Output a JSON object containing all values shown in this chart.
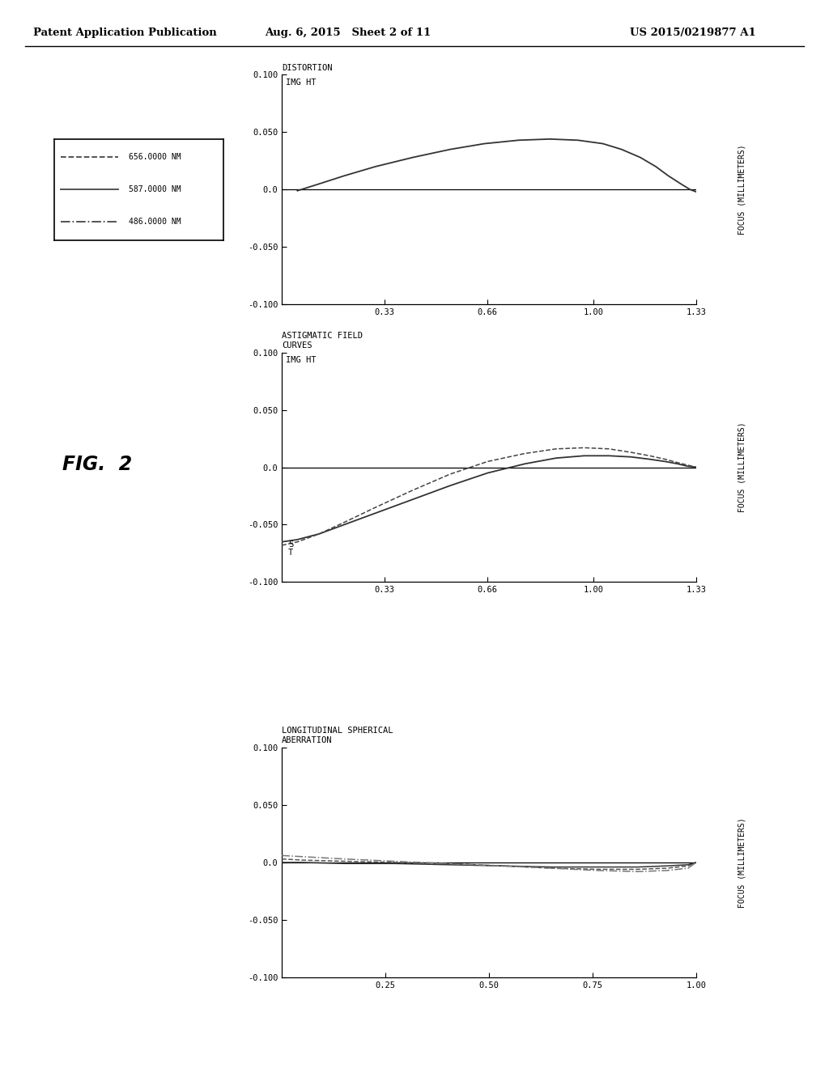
{
  "header_left": "Patent Application Publication",
  "header_mid": "Aug. 6, 2015   Sheet 2 of 11",
  "header_right": "US 2015/0219877 A1",
  "fig_label": "FIG.  2",
  "legend_entries": [
    {
      "label": "656.0000 NM",
      "style": "--",
      "color": "#444444"
    },
    {
      "label": "587.0000 NM",
      "style": "-",
      "color": "#444444"
    },
    {
      "label": "486.0000 NM",
      "style": "-.",
      "color": "#444444"
    }
  ],
  "plot1": {
    "title": "DISTORTION",
    "ylabel": "FOCUS (MILLIMETERS)",
    "xlabel": "IMG HT",
    "ylim": [
      -0.1,
      0.1
    ],
    "xlim": [
      0.0,
      1.33
    ],
    "yticks": [
      -0.1,
      -0.05,
      0.0,
      0.05,
      0.1
    ],
    "xticks": [
      0.33,
      0.66,
      1.0,
      1.33
    ],
    "ytick_labels": [
      "-0.100",
      "-0.050",
      "0.0",
      "0.050",
      "0.100"
    ],
    "xtick_labels": [
      "0.33",
      "0.66",
      "1.00",
      "1.33"
    ],
    "curve_y": [
      -0.001,
      0.005,
      0.012,
      0.02,
      0.028,
      0.035,
      0.04,
      0.043,
      0.044,
      0.043,
      0.04,
      0.035,
      0.028,
      0.02,
      0.012,
      0.005,
      0.0,
      -0.002
    ],
    "curve_x": [
      0.05,
      0.12,
      0.2,
      0.3,
      0.42,
      0.54,
      0.65,
      0.76,
      0.86,
      0.95,
      1.03,
      1.09,
      1.15,
      1.2,
      1.24,
      1.28,
      1.31,
      1.33
    ]
  },
  "plot2": {
    "title": "ASTIGMATIC FIELD\nCURVES",
    "ylabel": "FOCUS (MILLIMETERS)",
    "xlabel": "IMG HT",
    "ylim": [
      -0.1,
      0.1
    ],
    "xlim": [
      0.0,
      1.33
    ],
    "yticks": [
      -0.1,
      -0.05,
      0.0,
      0.05,
      0.1
    ],
    "xticks": [
      0.33,
      0.66,
      1.0,
      1.33
    ],
    "ytick_labels": [
      "-0.100",
      "-0.050",
      "0.0",
      "0.050",
      "0.100"
    ],
    "xtick_labels": [
      "0.33",
      "0.66",
      "1.00",
      "1.33"
    ],
    "T_label": "T",
    "S_label": "S",
    "T_x": [
      0.0,
      0.05,
      0.12,
      0.2,
      0.3,
      0.42,
      0.54,
      0.66,
      0.78,
      0.88,
      0.97,
      1.05,
      1.12,
      1.18,
      1.23,
      1.27,
      1.3,
      1.33
    ],
    "T_y": [
      -0.065,
      -0.063,
      -0.058,
      -0.05,
      -0.04,
      -0.028,
      -0.016,
      -0.005,
      0.003,
      0.008,
      0.01,
      0.01,
      0.009,
      0.007,
      0.005,
      0.003,
      0.001,
      0.0
    ],
    "S_x": [
      0.0,
      0.05,
      0.12,
      0.2,
      0.3,
      0.42,
      0.54,
      0.66,
      0.78,
      0.88,
      0.97,
      1.05,
      1.12,
      1.18,
      1.23,
      1.27,
      1.3,
      1.33
    ],
    "S_y": [
      -0.068,
      -0.065,
      -0.058,
      -0.048,
      -0.035,
      -0.02,
      -0.006,
      0.005,
      0.012,
      0.016,
      0.017,
      0.016,
      0.013,
      0.01,
      0.007,
      0.004,
      0.002,
      0.0
    ]
  },
  "plot3": {
    "title": "LONGITUDINAL SPHERICAL\nABERRATION",
    "ylabel": "FOCUS (MILLIMETERS)",
    "xlabel": "",
    "ylim": [
      -0.1,
      0.1
    ],
    "xlim": [
      0.0,
      1.0
    ],
    "yticks": [
      -0.1,
      -0.05,
      0.0,
      0.05,
      0.1
    ],
    "xticks": [
      0.25,
      0.5,
      0.75,
      1.0
    ],
    "ytick_labels": [
      "-0.100",
      "-0.050",
      "0.0",
      "0.050",
      "0.100"
    ],
    "xtick_labels": [
      "0.25",
      "0.50",
      "0.75",
      "1.00"
    ],
    "curves": [
      {
        "x": [
          0.0,
          0.05,
          0.15,
          0.27,
          0.4,
          0.53,
          0.65,
          0.76,
          0.86,
          0.93,
          0.98,
          1.0
        ],
        "y": [
          0.003,
          0.002,
          0.001,
          0.0,
          -0.001,
          -0.003,
          -0.005,
          -0.006,
          -0.006,
          -0.005,
          -0.003,
          0.0
        ],
        "style": "--"
      },
      {
        "x": [
          0.0,
          0.05,
          0.15,
          0.27,
          0.4,
          0.53,
          0.65,
          0.76,
          0.86,
          0.93,
          0.98,
          1.0
        ],
        "y": [
          0.0,
          0.0,
          -0.001,
          -0.001,
          -0.002,
          -0.003,
          -0.004,
          -0.004,
          -0.004,
          -0.003,
          -0.002,
          0.0
        ],
        "style": "-"
      },
      {
        "x": [
          0.0,
          0.05,
          0.15,
          0.27,
          0.4,
          0.53,
          0.65,
          0.76,
          0.86,
          0.93,
          0.98,
          1.0
        ],
        "y": [
          0.006,
          0.005,
          0.003,
          0.001,
          -0.001,
          -0.003,
          -0.005,
          -0.007,
          -0.008,
          -0.007,
          -0.005,
          0.0
        ],
        "style": "-."
      }
    ]
  }
}
